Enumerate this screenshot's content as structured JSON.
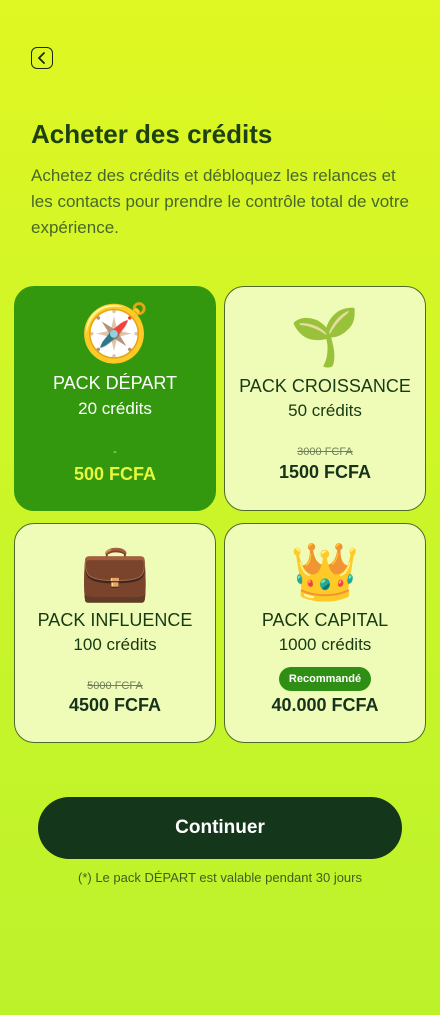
{
  "header": {
    "back_icon": "chevron-left-icon",
    "title": "Acheter des crédits",
    "subtitle": "Achetez des crédits et débloquez les relances et les contacts pour prendre le contrôle total de votre expérience."
  },
  "colors": {
    "background": "#d9f526",
    "selected_card": "#34980f",
    "card": "#effcb8",
    "button": "#14361a",
    "selected_price": "#e7f73e"
  },
  "packs": [
    {
      "icon": "compass-icon",
      "emoji": "🧭",
      "name": "PACK DÉPART",
      "credits": "20 crédits",
      "old_price": "-",
      "price": "500 FCFA",
      "selected": true
    },
    {
      "icon": "seedling-icon",
      "emoji": "🌱",
      "name": "PACK CROISSANCE",
      "credits": "50 crédits",
      "old_price": "3000 FCFA",
      "price": "1500 FCFA",
      "selected": false
    },
    {
      "icon": "briefcase-icon",
      "emoji": "💼",
      "name": "PACK INFLUENCE",
      "credits": "100 crédits",
      "old_price": "5000 FCFA",
      "price": "4500 FCFA",
      "selected": false
    },
    {
      "icon": "crown-icon",
      "emoji": "👑",
      "name": "PACK CAPITAL",
      "credits": "1000 crédits",
      "badge": "Recommandé",
      "price": "40.000 FCFA",
      "selected": false
    }
  ],
  "continue_label": "Continuer",
  "footnote": "(*) Le pack DÉPART est valable pendant 30 jours"
}
